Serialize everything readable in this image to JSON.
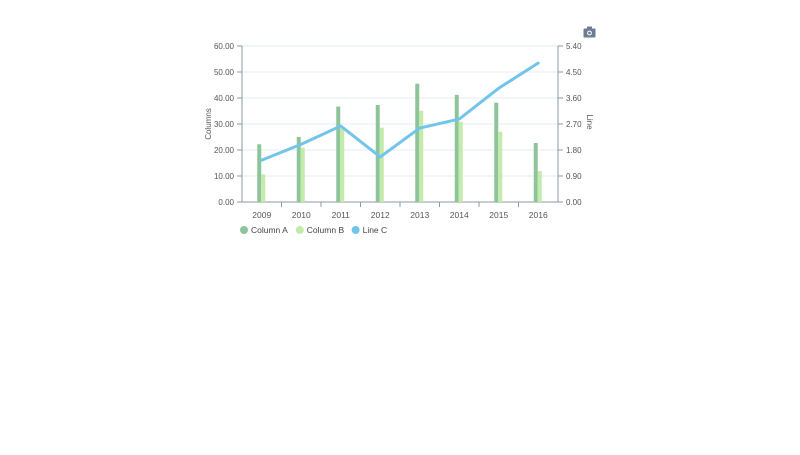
{
  "toolbar": {
    "camera_icon": "camera-icon",
    "camera_label": "Save as image"
  },
  "colors": {
    "column_a": "#8dc49a",
    "column_b": "#c5ebab",
    "line_c": "#72c5ea",
    "axis": "#8899aa",
    "grid": "#e6eef2",
    "tick_text": "#555555"
  },
  "chart_data": {
    "type": "bar",
    "title": "",
    "categories": [
      "2009",
      "2010",
      "2011",
      "2012",
      "2013",
      "2014",
      "2015",
      "2016"
    ],
    "series": [
      {
        "name": "Column A",
        "type": "bar",
        "axis": "left",
        "values": [
          22.2,
          25.0,
          36.7,
          37.3,
          45.5,
          41.2,
          38.2,
          22.7
        ]
      },
      {
        "name": "Column B",
        "type": "bar",
        "axis": "left",
        "values": [
          10.6,
          20.9,
          28.6,
          28.6,
          35.1,
          30.9,
          27.0,
          11.9
        ]
      },
      {
        "name": "Line C",
        "type": "line",
        "axis": "right",
        "values": [
          1.45,
          2.0,
          2.63,
          1.56,
          2.56,
          2.87,
          3.94,
          4.81
        ]
      }
    ],
    "xlabel": "",
    "ylabel": "Columns",
    "y2label": "Line",
    "ylim": [
      0,
      60
    ],
    "y2lim": [
      0,
      5.4
    ],
    "yticks": [
      "0.00",
      "10.00",
      "20.00",
      "30.00",
      "40.00",
      "50.00",
      "60.00"
    ],
    "y2ticks": [
      "0.00",
      "0.90",
      "1.80",
      "2.70",
      "3.60",
      "4.50",
      "5.40"
    ],
    "grid": true,
    "legend_position": "bottom-left",
    "legend": [
      "Column A",
      "Column B",
      "Line C"
    ]
  }
}
